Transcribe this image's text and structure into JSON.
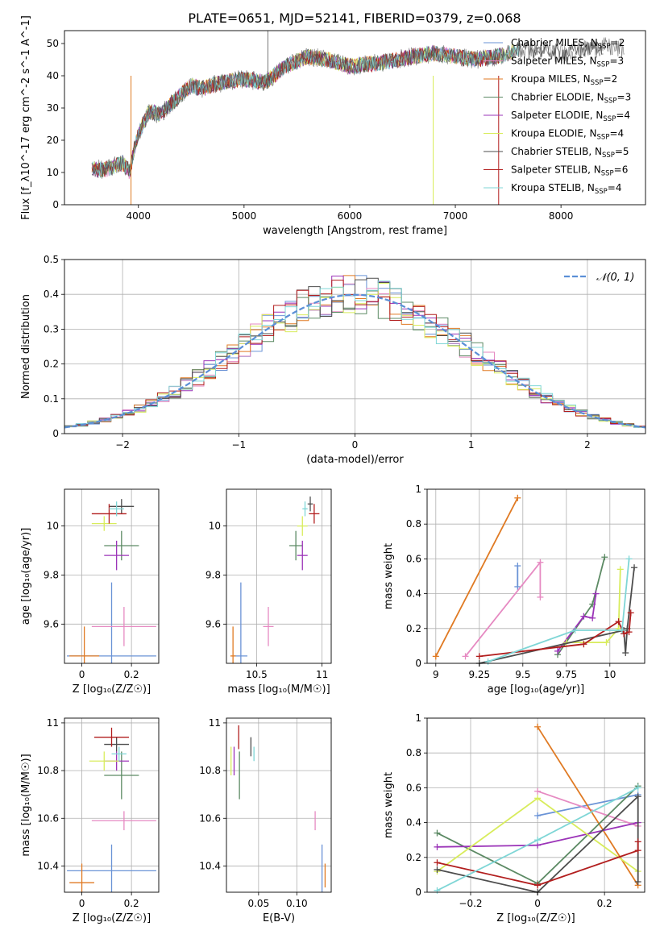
{
  "figure": {
    "title": "PLATE=0651, MJD=52141, FIBERID=0379, z=0.068"
  },
  "colors": {
    "Chabrier MILES": "#6a93d6",
    "Salpeter MILES": "#e68ac2",
    "Kroupa MILES": "#e07a23",
    "Chabrier ELODIE": "#5c8a64",
    "Salpeter ELODIE": "#9b34b8",
    "Kroupa ELODIE": "#d8ec5c",
    "Chabrier STELIB": "#4d4d4d",
    "Salpeter STELIB": "#b21e1e",
    "Kroupa STELIB": "#7fd6d6"
  },
  "chart_data": [
    {
      "id": "spectrum",
      "type": "line",
      "xlabel": "wavelength [Angstrom, rest frame]",
      "ylabel": "Flux [f_λ10^-17 erg cm^-2 s^-1 A^-1]",
      "xlim": [
        3300,
        8800
      ],
      "ylim": [
        0,
        54
      ],
      "xticks": [
        4000,
        5000,
        6000,
        7000,
        8000
      ],
      "yticks": [
        0,
        10,
        20,
        30,
        40,
        50
      ],
      "legend_position": "right",
      "spectrum_shape": {
        "x": [
          3560,
          3700,
          3850,
          3920,
          3950,
          4000,
          4100,
          4200,
          4300,
          4400,
          4500,
          4600,
          4800,
          5000,
          5200,
          5400,
          5600,
          5800,
          6000,
          6300,
          6600,
          6800,
          7000,
          7200,
          7400,
          7600,
          7800,
          8000,
          8200,
          8400,
          8600
        ],
        "y": [
          11,
          11,
          13,
          10,
          16,
          22,
          29,
          28,
          31,
          34,
          37,
          36,
          38,
          39,
          38,
          43,
          46,
          45,
          43,
          44,
          46,
          47,
          46,
          45,
          46,
          48,
          48,
          47,
          48,
          49,
          48
        ]
      },
      "models": [
        {
          "label_text": "Chabrier MILES",
          "nssp": "2",
          "color": "#6a93d6"
        },
        {
          "label_text": "Salpeter MILES",
          "nssp": "3",
          "color": "#e68ac2"
        },
        {
          "label_text": "Kroupa MILES",
          "nssp": "2",
          "color": "#e07a23"
        },
        {
          "label_text": "Chabrier ELODIE",
          "nssp": "3",
          "color": "#5c8a64"
        },
        {
          "label_text": "Salpeter ELODIE",
          "nssp": "4",
          "color": "#9b34b8"
        },
        {
          "label_text": "Kroupa ELODIE",
          "nssp": "4",
          "color": "#d8ec5c"
        },
        {
          "label_text": "Chabrier STELIB",
          "nssp": "5",
          "color": "#4d4d4d"
        },
        {
          "label_text": "Salpeter STELIB",
          "nssp": "6",
          "color": "#b21e1e"
        },
        {
          "label_text": "Kroupa STELIB",
          "nssp": "4",
          "color": "#7fd6d6"
        }
      ]
    },
    {
      "id": "residuals",
      "type": "histogram",
      "xlabel": "(data-model)/error",
      "ylabel": "Normed distribution",
      "xlim": [
        -2.5,
        2.5
      ],
      "ylim": [
        0,
        0.5
      ],
      "xticks": [
        -2,
        -1,
        0,
        1,
        2
      ],
      "yticks": [
        0.0,
        0.1,
        0.2,
        0.3,
        0.4,
        0.5
      ],
      "grid": true,
      "reference_curve": {
        "label": "𝒩(0, 1)",
        "mean": 0,
        "sigma": 1,
        "color": "#5b8fd6",
        "style": "dashed"
      },
      "legend_position": "top-right"
    },
    {
      "id": "age-vs-Z",
      "type": "scatter",
      "xlabel": "Z [log₁₀(Z/Z☉)]",
      "ylabel": "age  [log₁₀(age/yr)]",
      "xlim": [
        -0.07,
        0.31
      ],
      "ylim": [
        9.44,
        10.15
      ],
      "xticks": [
        0.0,
        0.2
      ],
      "yticks": [
        9.6,
        9.8,
        10.0
      ],
      "grid": true,
      "points": [
        {
          "x": 0.12,
          "y": 9.47,
          "xerr": 0.18,
          "yerr": 0.3,
          "color": "#6a93d6"
        },
        {
          "x": 0.17,
          "y": 9.59,
          "xerr": 0.13,
          "yerr": 0.08,
          "color": "#e68ac2"
        },
        {
          "x": 0.01,
          "y": 9.47,
          "xerr": 0.06,
          "yerr": 0.12,
          "color": "#e07a23"
        },
        {
          "x": 0.16,
          "y": 9.92,
          "xerr": 0.07,
          "yerr": 0.06,
          "color": "#5c8a64"
        },
        {
          "x": 0.14,
          "y": 9.88,
          "xerr": 0.05,
          "yerr": 0.06,
          "color": "#9b34b8"
        },
        {
          "x": 0.09,
          "y": 10.01,
          "xerr": 0.05,
          "yerr": 0.03,
          "color": "#d8ec5c"
        },
        {
          "x": 0.16,
          "y": 10.08,
          "xerr": 0.05,
          "yerr": 0.03,
          "color": "#4d4d4d"
        },
        {
          "x": 0.11,
          "y": 10.05,
          "xerr": 0.07,
          "yerr": 0.04,
          "color": "#b21e1e"
        },
        {
          "x": 0.14,
          "y": 10.07,
          "xerr": 0.03,
          "yerr": 0.03,
          "color": "#7fd6d6"
        }
      ]
    },
    {
      "id": "age-vs-mass",
      "type": "scatter",
      "xlabel": "mass [log₁₀(M/M☉)]",
      "ylabel": "",
      "xlim": [
        10.27,
        11.07
      ],
      "ylim": [
        9.44,
        10.15
      ],
      "xticks": [
        10.5,
        11.0
      ],
      "yticks": [
        9.6,
        9.8,
        10.0
      ],
      "grid": true,
      "points": [
        {
          "x": 10.38,
          "y": 9.47,
          "xerr": 0.05,
          "yerr": 0.3,
          "color": "#6a93d6"
        },
        {
          "x": 10.59,
          "y": 9.59,
          "xerr": 0.04,
          "yerr": 0.08,
          "color": "#e68ac2"
        },
        {
          "x": 10.32,
          "y": 9.47,
          "xerr": 0.02,
          "yerr": 0.12,
          "color": "#e07a23"
        },
        {
          "x": 10.8,
          "y": 9.92,
          "xerr": 0.05,
          "yerr": 0.06,
          "color": "#5c8a64"
        },
        {
          "x": 10.85,
          "y": 9.88,
          "xerr": 0.04,
          "yerr": 0.06,
          "color": "#9b34b8"
        },
        {
          "x": 10.85,
          "y": 10.0,
          "xerr": 0.04,
          "yerr": 0.04,
          "color": "#d8ec5c"
        },
        {
          "x": 10.91,
          "y": 10.09,
          "xerr": 0.02,
          "yerr": 0.03,
          "color": "#4d4d4d"
        },
        {
          "x": 10.94,
          "y": 10.05,
          "xerr": 0.04,
          "yerr": 0.04,
          "color": "#b21e1e"
        },
        {
          "x": 10.87,
          "y": 10.07,
          "xerr": 0.02,
          "yerr": 0.03,
          "color": "#7fd6d6"
        }
      ]
    },
    {
      "id": "weight-vs-age",
      "type": "line",
      "xlabel": "age  [log₁₀(age/yr)]",
      "ylabel": "mass weight",
      "xlim": [
        8.95,
        10.2
      ],
      "ylim": [
        0,
        1
      ],
      "xticks": [
        9.0,
        9.25,
        9.5,
        9.75,
        10.0
      ],
      "yticks": [
        0.0,
        0.2,
        0.4,
        0.6,
        0.8,
        1.0
      ],
      "grid": true,
      "series": [
        {
          "color": "#6a93d6",
          "x": [
            9.47,
            9.47
          ],
          "y": [
            0.44,
            0.56
          ]
        },
        {
          "color": "#e68ac2",
          "x": [
            9.17,
            9.6,
            9.6
          ],
          "y": [
            0.04,
            0.58,
            0.38
          ]
        },
        {
          "color": "#e07a23",
          "x": [
            9.0,
            9.47
          ],
          "y": [
            0.04,
            0.95
          ]
        },
        {
          "color": "#5c8a64",
          "x": [
            9.7,
            9.9,
            9.97
          ],
          "y": [
            0.05,
            0.34,
            0.61
          ]
        },
        {
          "color": "#9b34b8",
          "x": [
            9.7,
            9.85,
            9.9,
            9.92
          ],
          "y": [
            0.07,
            0.27,
            0.26,
            0.4
          ]
        },
        {
          "color": "#d8ec5c",
          "x": [
            9.75,
            9.98,
            10.05,
            10.06
          ],
          "y": [
            0.12,
            0.12,
            0.2,
            0.54
          ]
        },
        {
          "color": "#4d4d4d",
          "x": [
            9.25,
            10.08,
            10.09,
            10.1,
            10.14
          ],
          "y": [
            0.0,
            0.19,
            0.06,
            0.2,
            0.55
          ]
        },
        {
          "color": "#b21e1e",
          "x": [
            9.25,
            9.85,
            10.05,
            10.08,
            10.11,
            10.12
          ],
          "y": [
            0.04,
            0.11,
            0.24,
            0.17,
            0.18,
            0.29
          ]
        },
        {
          "color": "#7fd6d6",
          "x": [
            9.3,
            9.8,
            10.07,
            10.11
          ],
          "y": [
            0.01,
            0.19,
            0.19,
            0.6
          ]
        }
      ]
    },
    {
      "id": "mass-vs-Z",
      "type": "scatter",
      "xlabel": "Z [log₁₀(Z/Z☉)]",
      "ylabel": "mass [log₁₀(M/M☉)]",
      "xlim": [
        -0.07,
        0.31
      ],
      "ylim": [
        10.29,
        11.02
      ],
      "xticks": [
        0.0,
        0.2
      ],
      "yticks": [
        10.4,
        10.6,
        10.8,
        11.0
      ],
      "grid": true,
      "points": [
        {
          "x": 0.12,
          "y": 10.38,
          "xerr": 0.18,
          "yerr": 0.11,
          "color": "#6a93d6"
        },
        {
          "x": 0.17,
          "y": 10.59,
          "xerr": 0.13,
          "yerr": 0.04,
          "color": "#e68ac2"
        },
        {
          "x": 0.0,
          "y": 10.33,
          "xerr": 0.05,
          "yerr": 0.08,
          "color": "#e07a23"
        },
        {
          "x": 0.16,
          "y": 10.78,
          "xerr": 0.07,
          "yerr": 0.1,
          "color": "#5c8a64"
        },
        {
          "x": 0.14,
          "y": 10.84,
          "xerr": 0.05,
          "yerr": 0.04,
          "color": "#9b34b8"
        },
        {
          "x": 0.09,
          "y": 10.84,
          "xerr": 0.06,
          "yerr": 0.04,
          "color": "#d8ec5c"
        },
        {
          "x": 0.14,
          "y": 10.91,
          "xerr": 0.05,
          "yerr": 0.03,
          "color": "#4d4d4d"
        },
        {
          "x": 0.12,
          "y": 10.94,
          "xerr": 0.07,
          "yerr": 0.04,
          "color": "#b21e1e"
        },
        {
          "x": 0.15,
          "y": 10.87,
          "xerr": 0.03,
          "yerr": 0.03,
          "color": "#7fd6d6"
        }
      ]
    },
    {
      "id": "mass-vs-EBV",
      "type": "scatter",
      "xlabel": "E(B-V)",
      "ylabel": "",
      "xlim": [
        0.008,
        0.145
      ],
      "ylim": [
        10.29,
        11.02
      ],
      "xticks": [
        0.05,
        0.1
      ],
      "xticklabels": [
        "0.05",
        "0.10"
      ],
      "yticks": [
        10.4,
        10.6,
        10.8,
        11.0
      ],
      "grid": true,
      "points": [
        {
          "x": 0.133,
          "y": 10.38,
          "yerr": 0.11,
          "color": "#6a93d6"
        },
        {
          "x": 0.124,
          "y": 10.59,
          "yerr": 0.04,
          "color": "#e68ac2"
        },
        {
          "x": 0.137,
          "y": 10.36,
          "yerr": 0.05,
          "color": "#e07a23"
        },
        {
          "x": 0.025,
          "y": 10.78,
          "yerr": 0.1,
          "color": "#5c8a64"
        },
        {
          "x": 0.018,
          "y": 10.84,
          "yerr": 0.06,
          "color": "#9b34b8"
        },
        {
          "x": 0.014,
          "y": 10.84,
          "yerr": 0.06,
          "color": "#d8ec5c"
        },
        {
          "x": 0.04,
          "y": 10.9,
          "yerr": 0.04,
          "color": "#4d4d4d"
        },
        {
          "x": 0.024,
          "y": 10.94,
          "yerr": 0.05,
          "color": "#b21e1e"
        },
        {
          "x": 0.044,
          "y": 10.87,
          "yerr": 0.03,
          "color": "#7fd6d6"
        }
      ]
    },
    {
      "id": "weight-vs-Z",
      "type": "line",
      "xlabel": "Z [log₁₀(Z/Z☉)]",
      "ylabel": "mass weight",
      "xlim": [
        -0.33,
        0.32
      ],
      "ylim": [
        0,
        1
      ],
      "xticks": [
        -0.2,
        0.0,
        0.2
      ],
      "yticks": [
        0.0,
        0.2,
        0.4,
        0.6,
        0.8,
        1.0
      ],
      "grid": true,
      "series": [
        {
          "color": "#6a93d6",
          "x": [
            0.0,
            0.3
          ],
          "y": [
            0.44,
            0.56
          ]
        },
        {
          "color": "#e68ac2",
          "x": [
            0.0,
            0.3
          ],
          "y": [
            0.58,
            0.38
          ]
        },
        {
          "color": "#e07a23",
          "x": [
            0.0,
            0.3
          ],
          "y": [
            0.95,
            0.04
          ]
        },
        {
          "color": "#5c8a64",
          "x": [
            -0.3,
            0.0,
            0.3
          ],
          "y": [
            0.34,
            0.05,
            0.61
          ]
        },
        {
          "color": "#9b34b8",
          "x": [
            -0.3,
            0.0,
            0.3
          ],
          "y": [
            0.26,
            0.27,
            0.4
          ]
        },
        {
          "color": "#d8ec5c",
          "x": [
            -0.3,
            0.0,
            0.3
          ],
          "y": [
            0.12,
            0.54,
            0.12
          ]
        },
        {
          "color": "#4d4d4d",
          "x": [
            -0.3,
            0.0,
            0.3,
            0.3
          ],
          "y": [
            0.13,
            0.0,
            0.55,
            0.06
          ]
        },
        {
          "color": "#b21e1e",
          "x": [
            -0.3,
            0.0,
            0.3,
            0.3
          ],
          "y": [
            0.17,
            0.04,
            0.24,
            0.29
          ]
        },
        {
          "color": "#7fd6d6",
          "x": [
            -0.3,
            0.0,
            0.3
          ],
          "y": [
            0.01,
            0.3,
            0.6
          ]
        }
      ]
    }
  ]
}
